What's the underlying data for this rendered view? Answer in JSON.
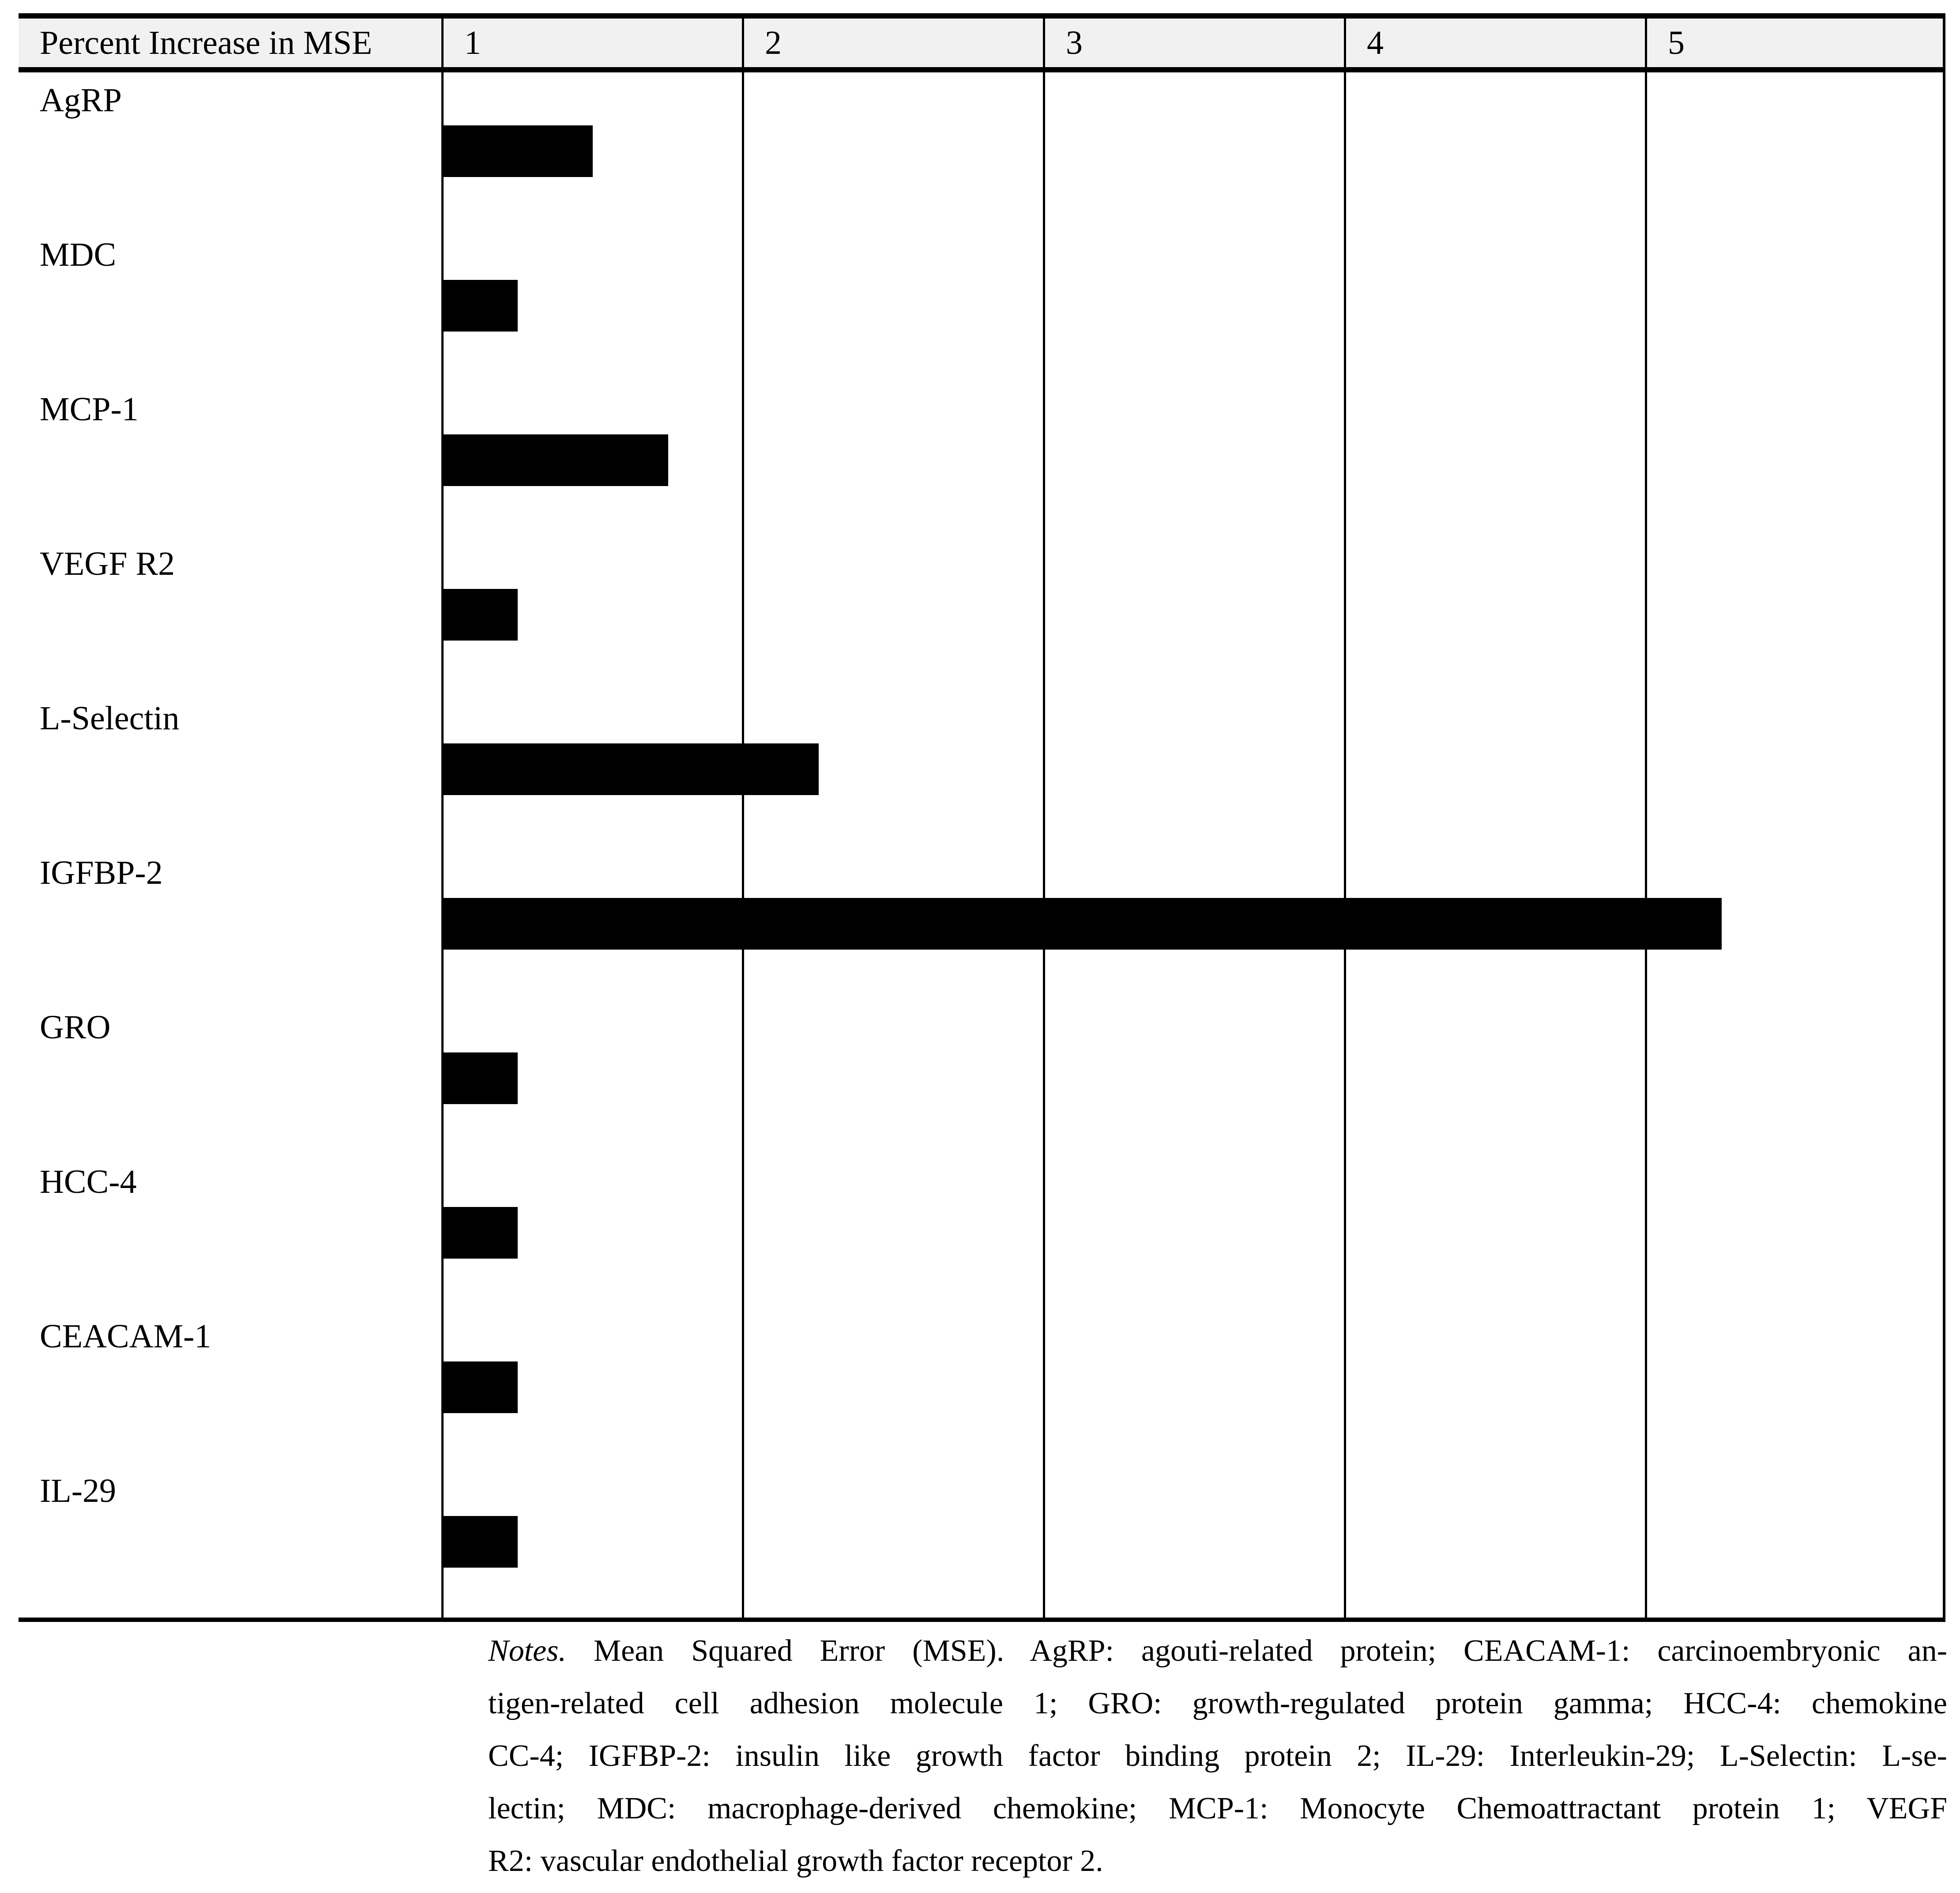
{
  "table": {
    "header": {
      "label": "Percent Increase in MSE",
      "columns": [
        "1",
        "2",
        "3",
        "4",
        "5"
      ]
    },
    "rows": [
      {
        "label": "AgRP",
        "value": 0.5
      },
      {
        "label": "MDC",
        "value": 0.25
      },
      {
        "label": "MCP-1",
        "value": 0.75
      },
      {
        "label": "VEGF R2",
        "value": 0.25
      },
      {
        "label": "L-Selectin",
        "value": 1.25
      },
      {
        "label": "IGFBP-2",
        "value": 4.25
      },
      {
        "label": "GRO",
        "value": 0.25
      },
      {
        "label": "HCC-4",
        "value": 0.25
      },
      {
        "label": "CEACAM-1",
        "value": 0.25
      },
      {
        "label": "IL-29",
        "value": 0.25
      }
    ]
  },
  "chart_data": {
    "type": "bar",
    "orientation": "horizontal",
    "title": "Percent Increase in MSE",
    "categories": [
      "AgRP",
      "MDC",
      "MCP-1",
      "VEGF R2",
      "L-Selectin",
      "IGFBP-2",
      "GRO",
      "HCC-4",
      "CEACAM-1",
      "IL-29"
    ],
    "values": [
      0.5,
      0.25,
      0.75,
      0.25,
      1.25,
      4.25,
      0.25,
      0.25,
      0.25,
      0.25
    ],
    "xlabel": "Percent Increase in MSE",
    "ylabel": "",
    "xlim": [
      0,
      5
    ],
    "x_ticks": [
      1,
      2,
      3,
      4,
      5
    ],
    "grid": true,
    "legend": false,
    "bar_color": "#000000"
  },
  "notes": {
    "lines": [
      {
        "italic": "Notes.",
        "text": " Mean Squared Error (MSE). AgRP: agouti-related protein; CEACAM-1: carcinoembryonic an-"
      },
      {
        "italic": "",
        "text": "tigen-related cell adhesion molecule 1; GRO: growth-regulated protein gamma; HCC-4: chemokine"
      },
      {
        "italic": "",
        "text": "CC-4; IGFBP-2: insulin like growth factor binding protein 2; IL-29: Interleukin-29; L-Selectin: L-se-"
      },
      {
        "italic": "",
        "text": "lectin; MDC: macrophage-derived chemokine; MCP-1: Monocyte Chemoattractant protein 1; VEGF"
      },
      {
        "italic": "",
        "text": "R2: vascular endothelial growth factor receptor 2."
      }
    ]
  },
  "colors": {
    "bar": "#000000",
    "border": "#000000",
    "header_bg": "#f1f1f1",
    "text": "#000000"
  }
}
